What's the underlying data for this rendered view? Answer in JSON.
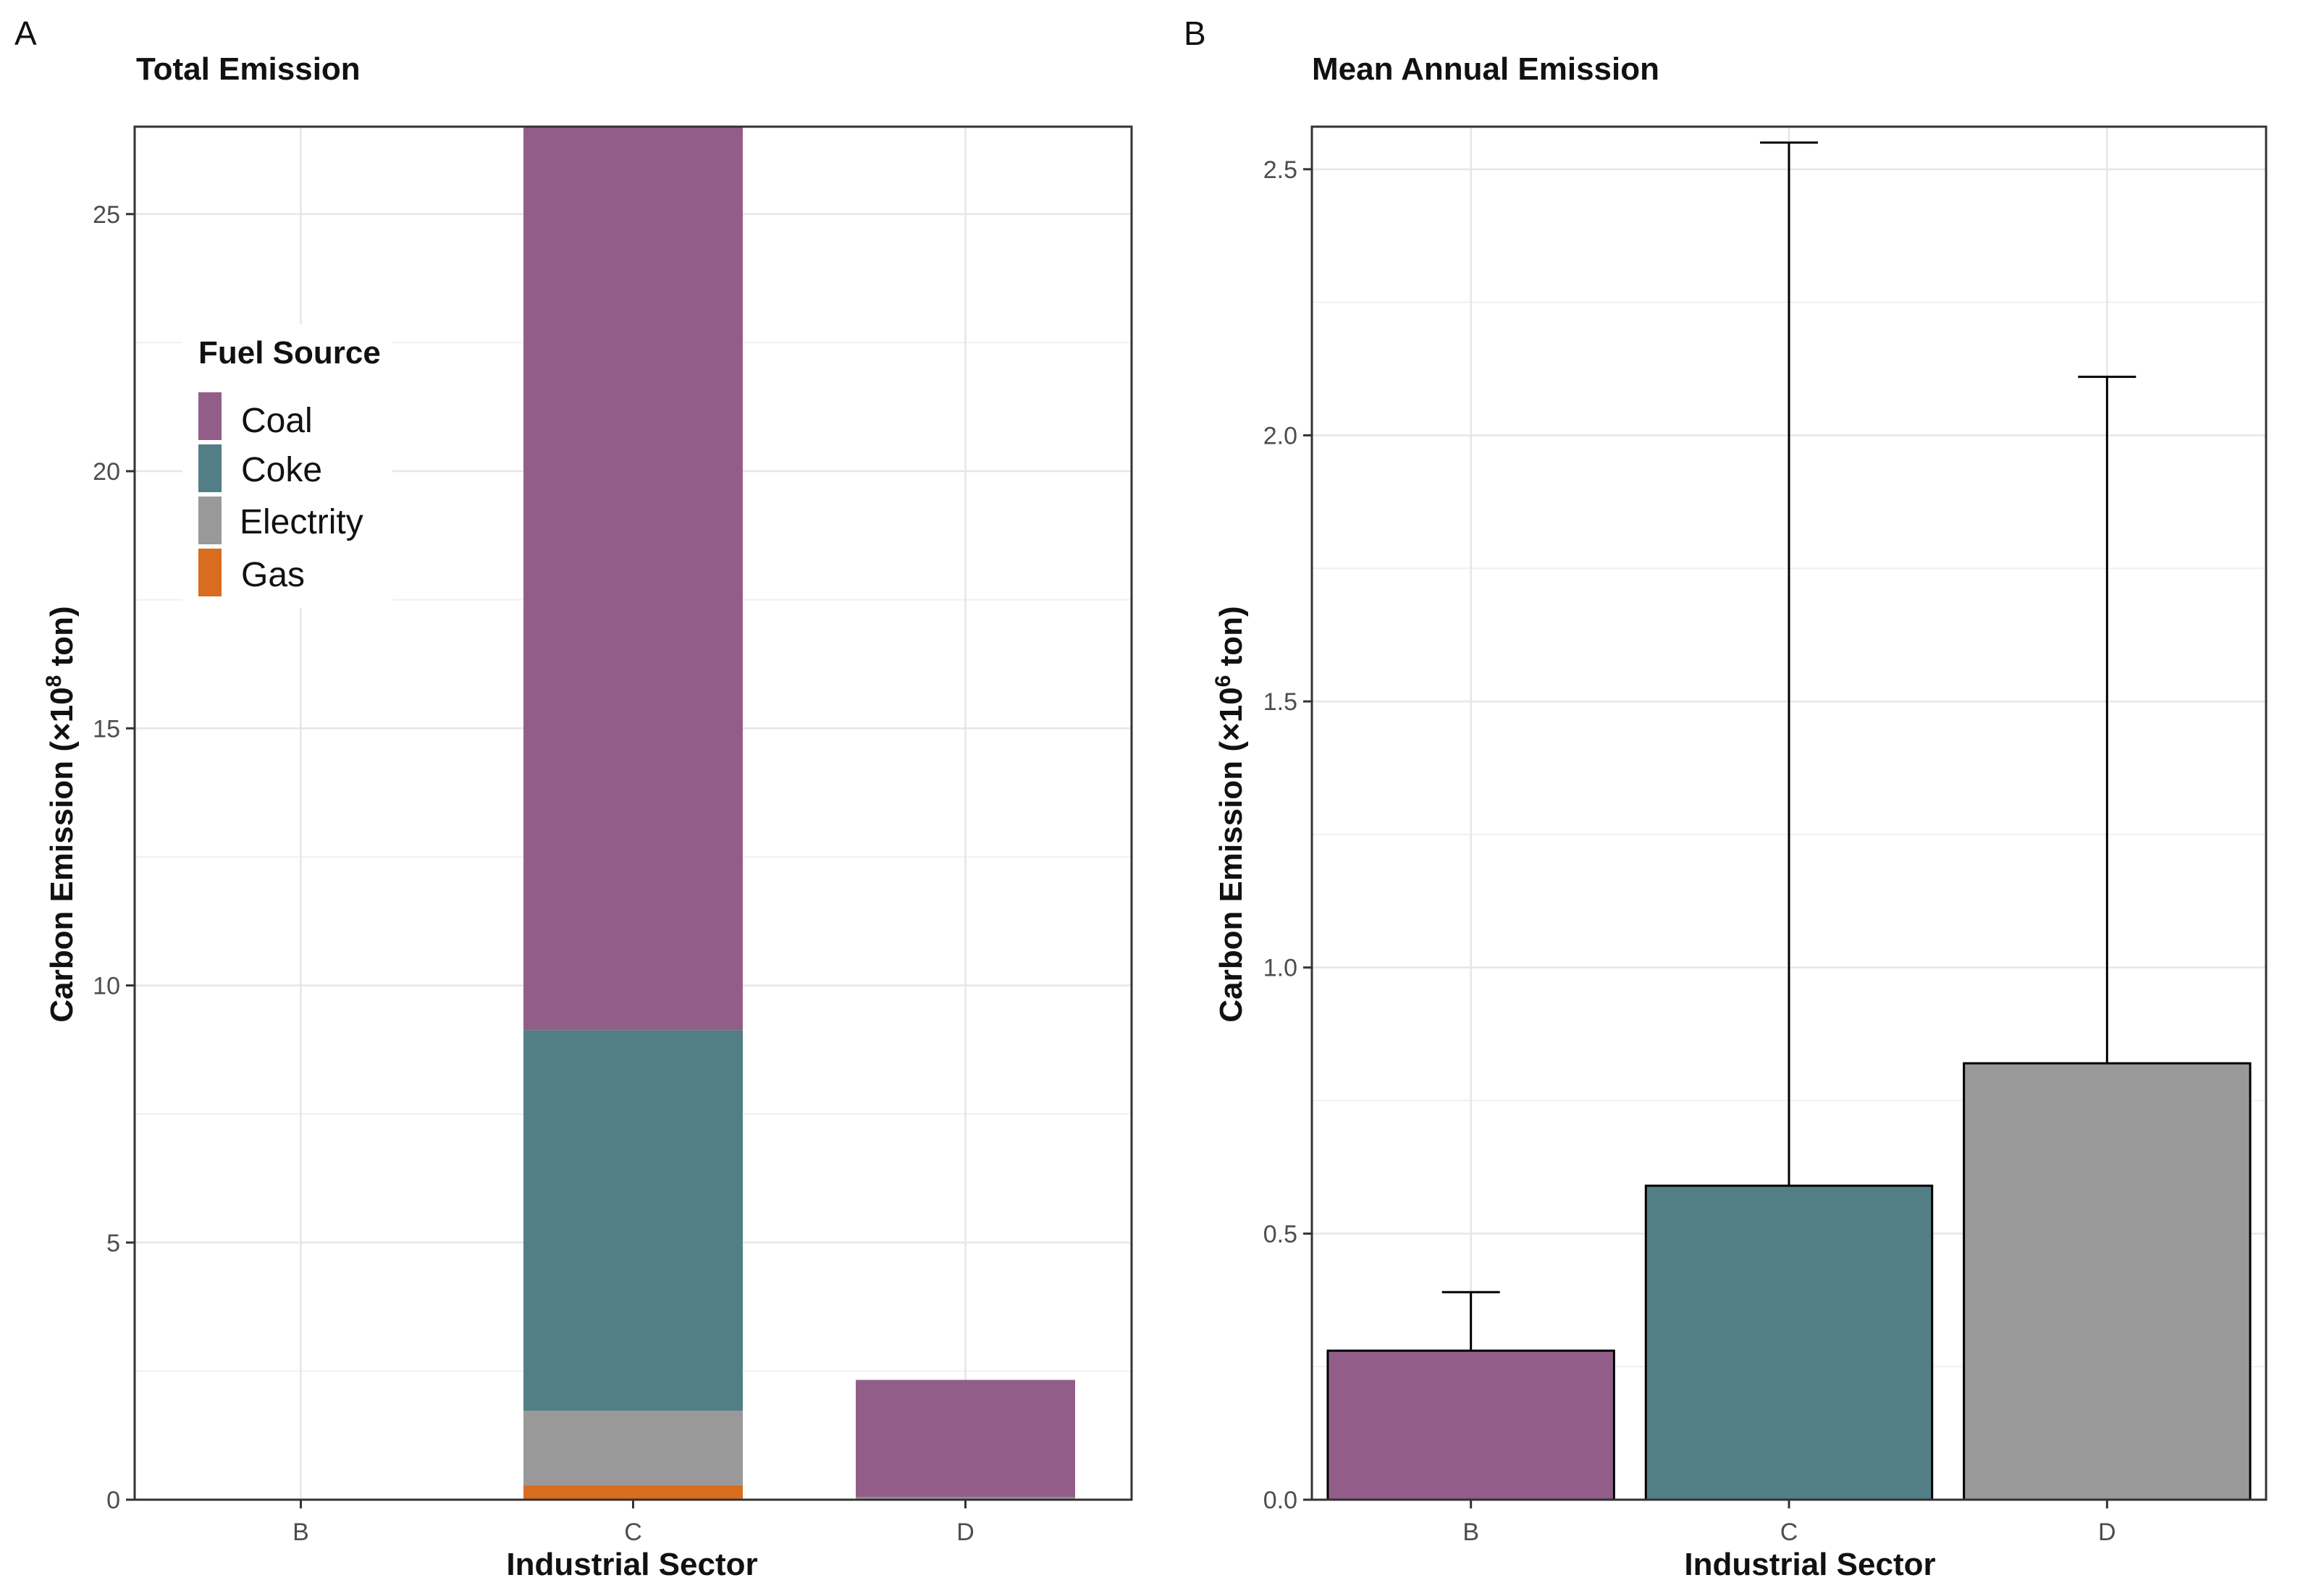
{
  "chart_data": [
    {
      "panel": "A",
      "type": "bar",
      "stacked": true,
      "title": "Total Emission",
      "xlabel": "Industrial Sector",
      "ylabel_main": "Carbon Emission (×10",
      "ylabel_sup": "8",
      "ylabel_tail": " ton)",
      "ylim": [
        0,
        26.7
      ],
      "yticks": [
        0,
        5,
        10,
        15,
        20,
        25
      ],
      "categories": [
        "B",
        "C",
        "D"
      ],
      "series": [
        {
          "name": "Gas",
          "color": "#d86c1f",
          "values": [
            0,
            0.28,
            0
          ]
        },
        {
          "name": "Electrity",
          "color": "#999999",
          "values": [
            0,
            1.45,
            0.05
          ]
        },
        {
          "name": "Coke",
          "color": "#527e86",
          "values": [
            0,
            7.4,
            0
          ]
        },
        {
          "name": "Coal",
          "color": "#925e89",
          "values": [
            0,
            17.55,
            2.28
          ]
        }
      ],
      "legend": {
        "title": "Fuel Source",
        "position": "top-left",
        "entries": [
          {
            "label": "Coal",
            "color": "#925e89"
          },
          {
            "label": "Coke",
            "color": "#527e86"
          },
          {
            "label": "Electrity",
            "color": "#999999"
          },
          {
            "label": "Gas",
            "color": "#d86c1f"
          }
        ]
      },
      "grid": true
    },
    {
      "panel": "B",
      "type": "bar",
      "title": "Mean Annual Emission",
      "xlabel": "Industrial Sector",
      "ylabel_main": "Carbon Emission (×10",
      "ylabel_sup": "6",
      "ylabel_tail": " ton)",
      "ylim": [
        0,
        2.58
      ],
      "yticks": [
        "0.0",
        "0.5",
        "1.0",
        "1.5",
        "2.0",
        "2.5"
      ],
      "categories": [
        "B",
        "C",
        "D"
      ],
      "values": [
        0.28,
        0.59,
        0.82
      ],
      "error_upper": [
        0.39,
        2.55,
        2.11
      ],
      "colors": [
        "#925e89",
        "#527e86",
        "#999999"
      ],
      "grid": true
    }
  ]
}
